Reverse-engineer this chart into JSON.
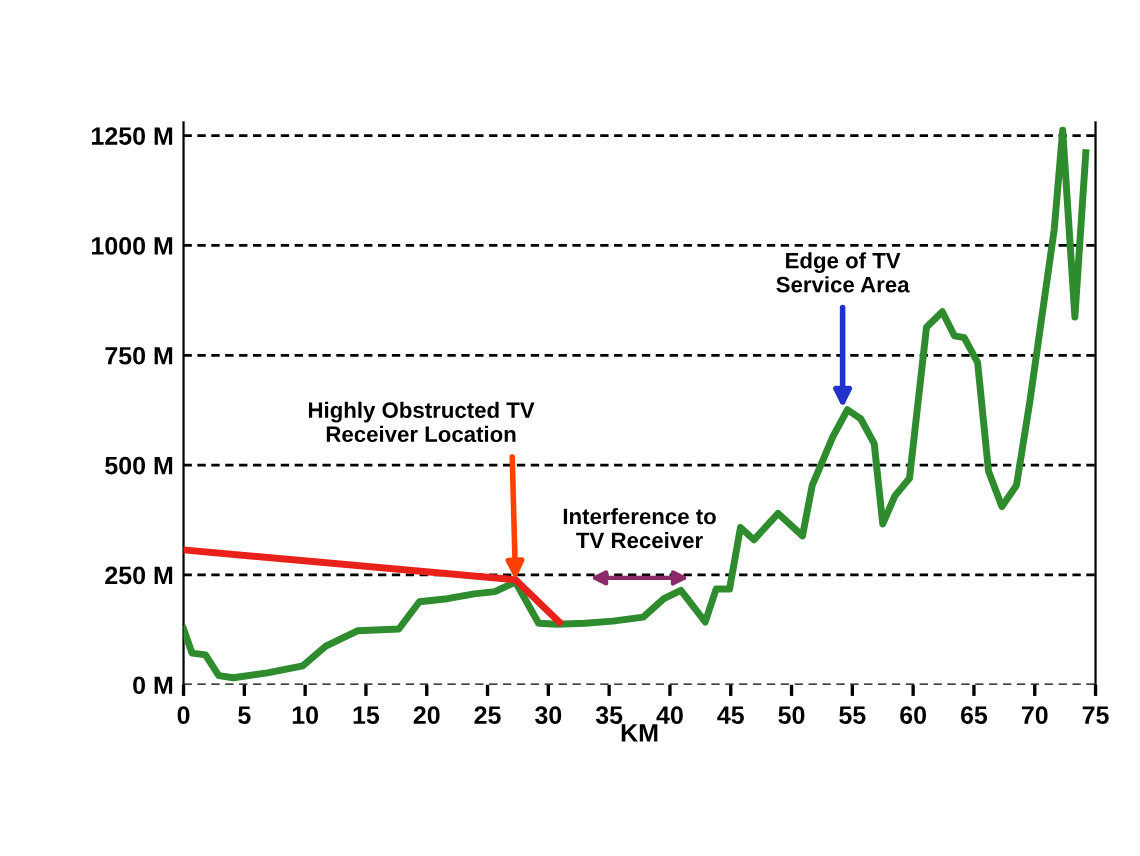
{
  "chart_data": {
    "type": "line",
    "xlabel": "KM",
    "xlim": [
      0,
      75
    ],
    "ylim": [
      0,
      1280
    ],
    "xticks": [
      0,
      5,
      10,
      15,
      20,
      25,
      30,
      35,
      40,
      45,
      50,
      55,
      60,
      65,
      70,
      75
    ],
    "yticks": [
      {
        "value": 0,
        "label": "0 M"
      },
      {
        "value": 250,
        "label": "250 M"
      },
      {
        "value": 500,
        "label": "500 M"
      },
      {
        "value": 750,
        "label": "750 M"
      },
      {
        "value": 1000,
        "label": "1000 M"
      },
      {
        "value": 1250,
        "label": "1250 M"
      }
    ],
    "grid": "y",
    "line_style": "solid",
    "marker": "none",
    "series": [
      {
        "color": "#2e8b2e",
        "x": [
          0,
          0.7,
          1.8,
          2.9,
          4.1,
          6.9,
          9.8,
          11.7,
          14.3,
          17.7,
          19.4,
          21.7,
          23.9,
          25.6,
          27.3,
          29.2,
          30.7,
          33,
          35.3,
          37.8,
          39.5,
          40.9,
          42.9,
          43.8,
          44.9,
          45.8,
          46.9,
          48.9,
          50.9,
          51.7,
          53.4,
          54.6,
          55.7,
          56.8,
          57.5,
          58.5,
          59.7,
          61.1,
          62.4,
          63.4,
          64.2,
          65.3,
          66.2,
          67.3,
          68.5,
          69.6,
          71.6,
          72.3,
          73.3,
          74.2
        ],
        "values": [
          127,
          72,
          68,
          21,
          16,
          27,
          43,
          88,
          123,
          127,
          189,
          196,
          207,
          212,
          234,
          140,
          138,
          140,
          145,
          154,
          196,
          215,
          143,
          218,
          218,
          358,
          330,
          390,
          339,
          454,
          565,
          626,
          605,
          549,
          366,
          430,
          470,
          814,
          849,
          794,
          790,
          734,
          486,
          406,
          454,
          645,
          1036,
          1262,
          837,
          1211
        ]
      },
      {
        "color": "#e8221a",
        "x": [
          0,
          27.3,
          30.9
        ],
        "values": [
          307,
          239,
          143
        ]
      }
    ],
    "annotations": [
      {
        "text": "Highly Obstructed TV\nReceiver Location",
        "x": 27.3,
        "y": 239
      },
      {
        "text": "Edge of TV\nService Area",
        "x": 54.2,
        "y": 630
      },
      "Interference to\nTV Receiver"
    ]
  }
}
